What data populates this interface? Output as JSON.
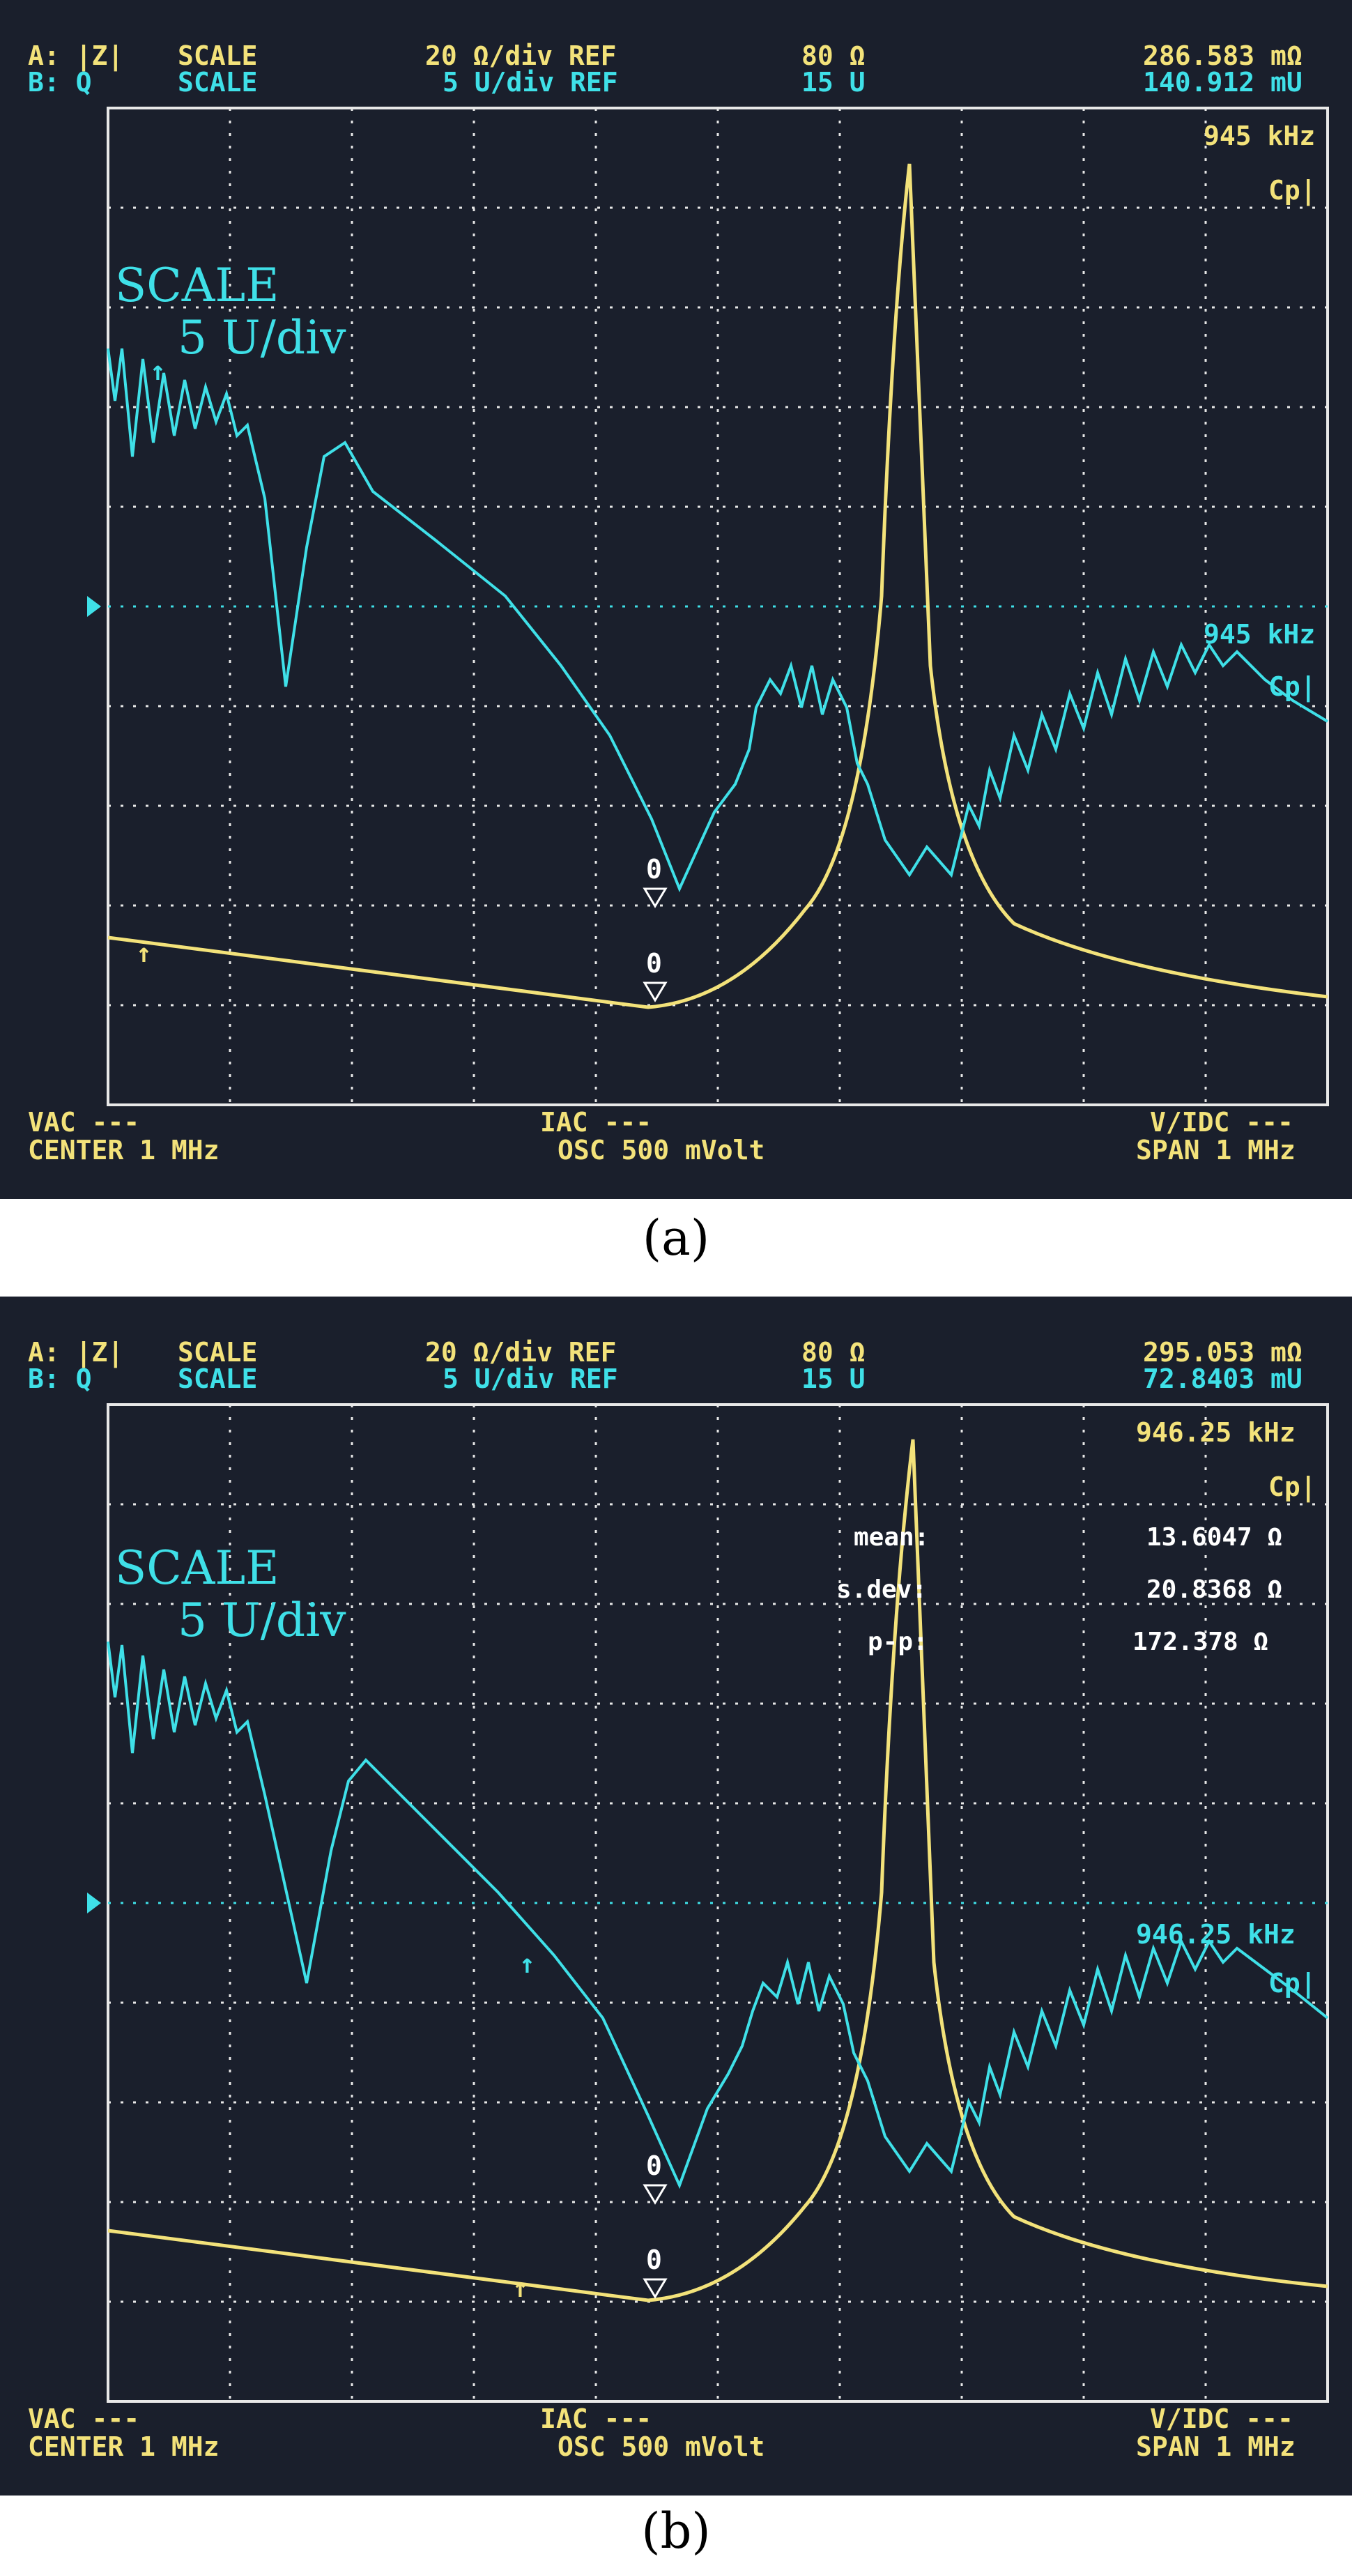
{
  "panels": [
    {
      "id": "a",
      "caption": "(a)",
      "header": {
        "a_label": "A: |Z|",
        "b_label": "B: Q",
        "a_scale_word": "SCALE",
        "b_scale_word": "SCALE",
        "a_scale": "20 Ω/div REF",
        "b_scale": "5 U/div REF",
        "a_ref": "80 Ω",
        "b_ref": "15 U",
        "a_marker_val": "286.583 mΩ",
        "b_marker_val": "140.912 mU"
      },
      "yellow_marker": {
        "freq": "945 kHz",
        "mode": "Cp|"
      },
      "cyan_marker": {
        "freq": "945 kHz",
        "mode": "Cp|"
      },
      "scale_overlay": {
        "line1": "SCALE",
        "line2": "5 U/div"
      },
      "footer": {
        "left1": "VAC ---",
        "left2": "CENTER 1 MHz",
        "mid1": "IAC ---",
        "mid2": "OSC 500 mVolt",
        "right1": "V/IDC ---",
        "right2": "SPAN 1 MHz"
      },
      "marker_zero": "0"
    },
    {
      "id": "b",
      "caption": "(b)",
      "header": {
        "a_label": "A: |Z|",
        "b_label": "B: Q",
        "a_scale_word": "SCALE",
        "b_scale_word": "SCALE",
        "a_scale": "20 Ω/div REF",
        "b_scale": "5 U/div REF",
        "a_ref": "80 Ω",
        "b_ref": "15 U",
        "a_marker_val": "295.053 mΩ",
        "b_marker_val": "72.8403 mU"
      },
      "yellow_marker": {
        "freq": "946.25 kHz",
        "mode": "Cp|"
      },
      "cyan_marker": {
        "freq": "946.25 kHz",
        "mode": "Cp|"
      },
      "stats": [
        {
          "label": "mean:",
          "value": "13.6047 Ω"
        },
        {
          "label": "s.dev:",
          "value": "20.8368 Ω"
        },
        {
          "label": "p-p:",
          "value": "172.378 Ω"
        }
      ],
      "scale_overlay": {
        "line1": "SCALE",
        "line2": "5 U/div"
      },
      "footer": {
        "left1": "VAC ---",
        "left2": "CENTER 1 MHz",
        "mid1": "IAC ---",
        "mid2": "OSC 500 mVolt",
        "right1": "V/IDC ---",
        "right2": "SPAN 1 MHz"
      },
      "marker_zero": "0"
    }
  ],
  "colors": {
    "trace_a": "#f3e27a",
    "trace_b": "#3fe0e8",
    "grid": "#e8e8e8",
    "screen": "#1a1f2c"
  }
}
